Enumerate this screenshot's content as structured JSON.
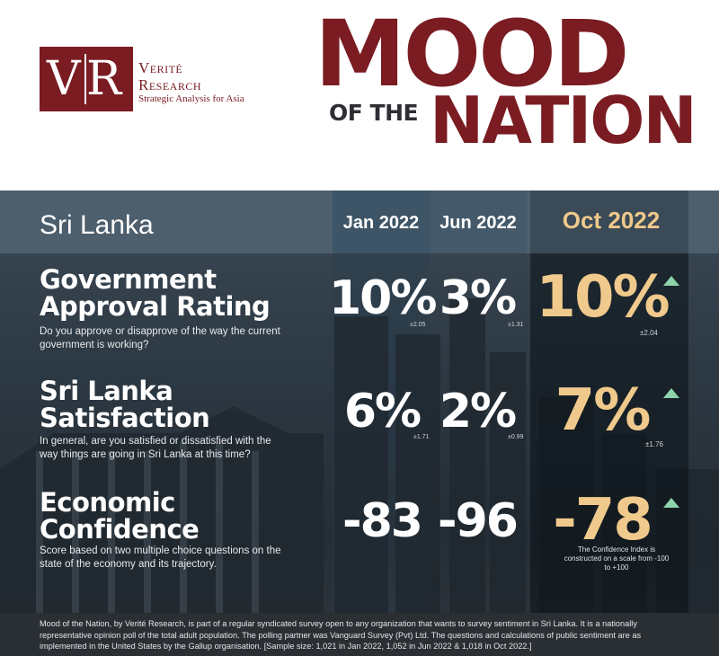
{
  "brand": {
    "logo_letters": {
      "v": "V",
      "r": "R"
    },
    "name_line1": "Verité",
    "name_line2": "Research",
    "tagline": "Strategic Analysis for Asia",
    "color": "#7a1c22"
  },
  "title": {
    "mood": "MOOD",
    "of_the": "OF THE",
    "nation": "NATION"
  },
  "table": {
    "country": "Sri Lanka",
    "columns": [
      "Jan 2022",
      "Jun 2022",
      "Oct 2022"
    ],
    "highlight_color": "#f0c98c",
    "trend_color": "#8ed3a9",
    "rows": [
      {
        "title_line1": "Government",
        "title_line2": "Approval Rating",
        "question": "Do you approve or disapprove of the way the current government is working?",
        "values": [
          "10%",
          "3%",
          "10%"
        ],
        "moe": [
          "±2.05",
          "±1.31",
          "±2.04"
        ],
        "trend": "up-icon"
      },
      {
        "title_line1": "Sri Lanka",
        "title_line2": "Satisfaction",
        "question": "In general, are you satisfied or dissatisfied with the way things are going in Sri Lanka at this time?",
        "values": [
          "6%",
          "2%",
          "7%"
        ],
        "moe": [
          "±1.71",
          "±0.99",
          "±1.76"
        ],
        "trend": "up-icon"
      },
      {
        "title_line1": "Economic",
        "title_line2": "Confidence",
        "question": "Score based on two multiple choice questions on the state of the economy and its trajectory.",
        "values": [
          "-83",
          "-96",
          "-78"
        ],
        "trend": "up-icon"
      }
    ],
    "confidence_note": "The Confidence Index is constructed on a scale from -100 to +100"
  },
  "footer": {
    "text": "Mood of the Nation, by Verité Research, is part of a regular syndicated survey open to any organization that wants to survey sentiment in Sri Lanka. It is a nationally representative opinion poll of the total adult population. The polling partner was Vanguard Survey (Pvt) Ltd. The questions and calculations of public sentiment are as implemented in the United States by the Gallup organisation. [Sample size: 1,021 in Jan 2022, 1,052 in Jun 2022 & 1,018 in Oct 2022.]"
  }
}
